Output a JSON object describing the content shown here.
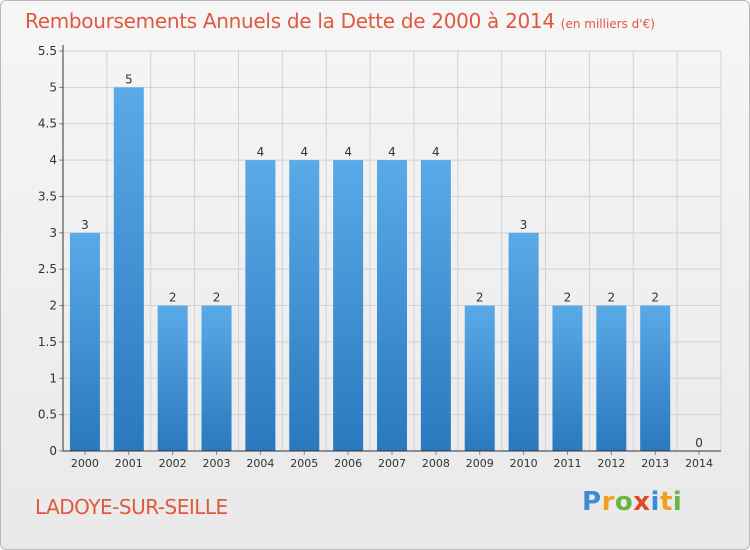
{
  "page": {
    "title": "Remboursements Annuels de la Dette de 2000 à 2014",
    "subtitle": "(en milliers d'€)",
    "commune": "LADOYE-SUR-SEILLE",
    "logo": {
      "p": "P",
      "r": "r",
      "o": "o",
      "x": "x",
      "i": "i",
      "t": "t",
      "i2": "i"
    }
  },
  "colors": {
    "title": "#e0583e",
    "bar_top": "#5aaae8",
    "bar_bottom": "#2a78be",
    "grid": "#d2d2d2",
    "axis": "#333333"
  },
  "chart_data": {
    "type": "bar",
    "categories": [
      "2000",
      "2001",
      "2002",
      "2003",
      "2004",
      "2005",
      "2006",
      "2007",
      "2008",
      "2009",
      "2010",
      "2011",
      "2012",
      "2013",
      "2014"
    ],
    "values": [
      3,
      5,
      2,
      2,
      4,
      4,
      4,
      4,
      4,
      2,
      3,
      2,
      2,
      2,
      0
    ],
    "data_labels": [
      "3",
      "5",
      "2",
      "2",
      "4",
      "4",
      "4",
      "4",
      "4",
      "2",
      "3",
      "2",
      "2",
      "2",
      "0"
    ],
    "yticks": [
      0,
      0.5,
      1,
      1.5,
      2,
      2.5,
      3,
      3.5,
      4,
      4.5,
      5,
      5.5
    ],
    "ytick_labels": [
      "0",
      "0.5",
      "1",
      "1.5",
      "2",
      "2.5",
      "3",
      "3.5",
      "4",
      "4.5",
      "5",
      "5.5"
    ],
    "ylim": [
      0,
      5.5
    ],
    "grid": true,
    "legend": "none",
    "title": "Remboursements Annuels de la Dette de 2000 à 2014",
    "xlabel": "",
    "ylabel": ""
  }
}
